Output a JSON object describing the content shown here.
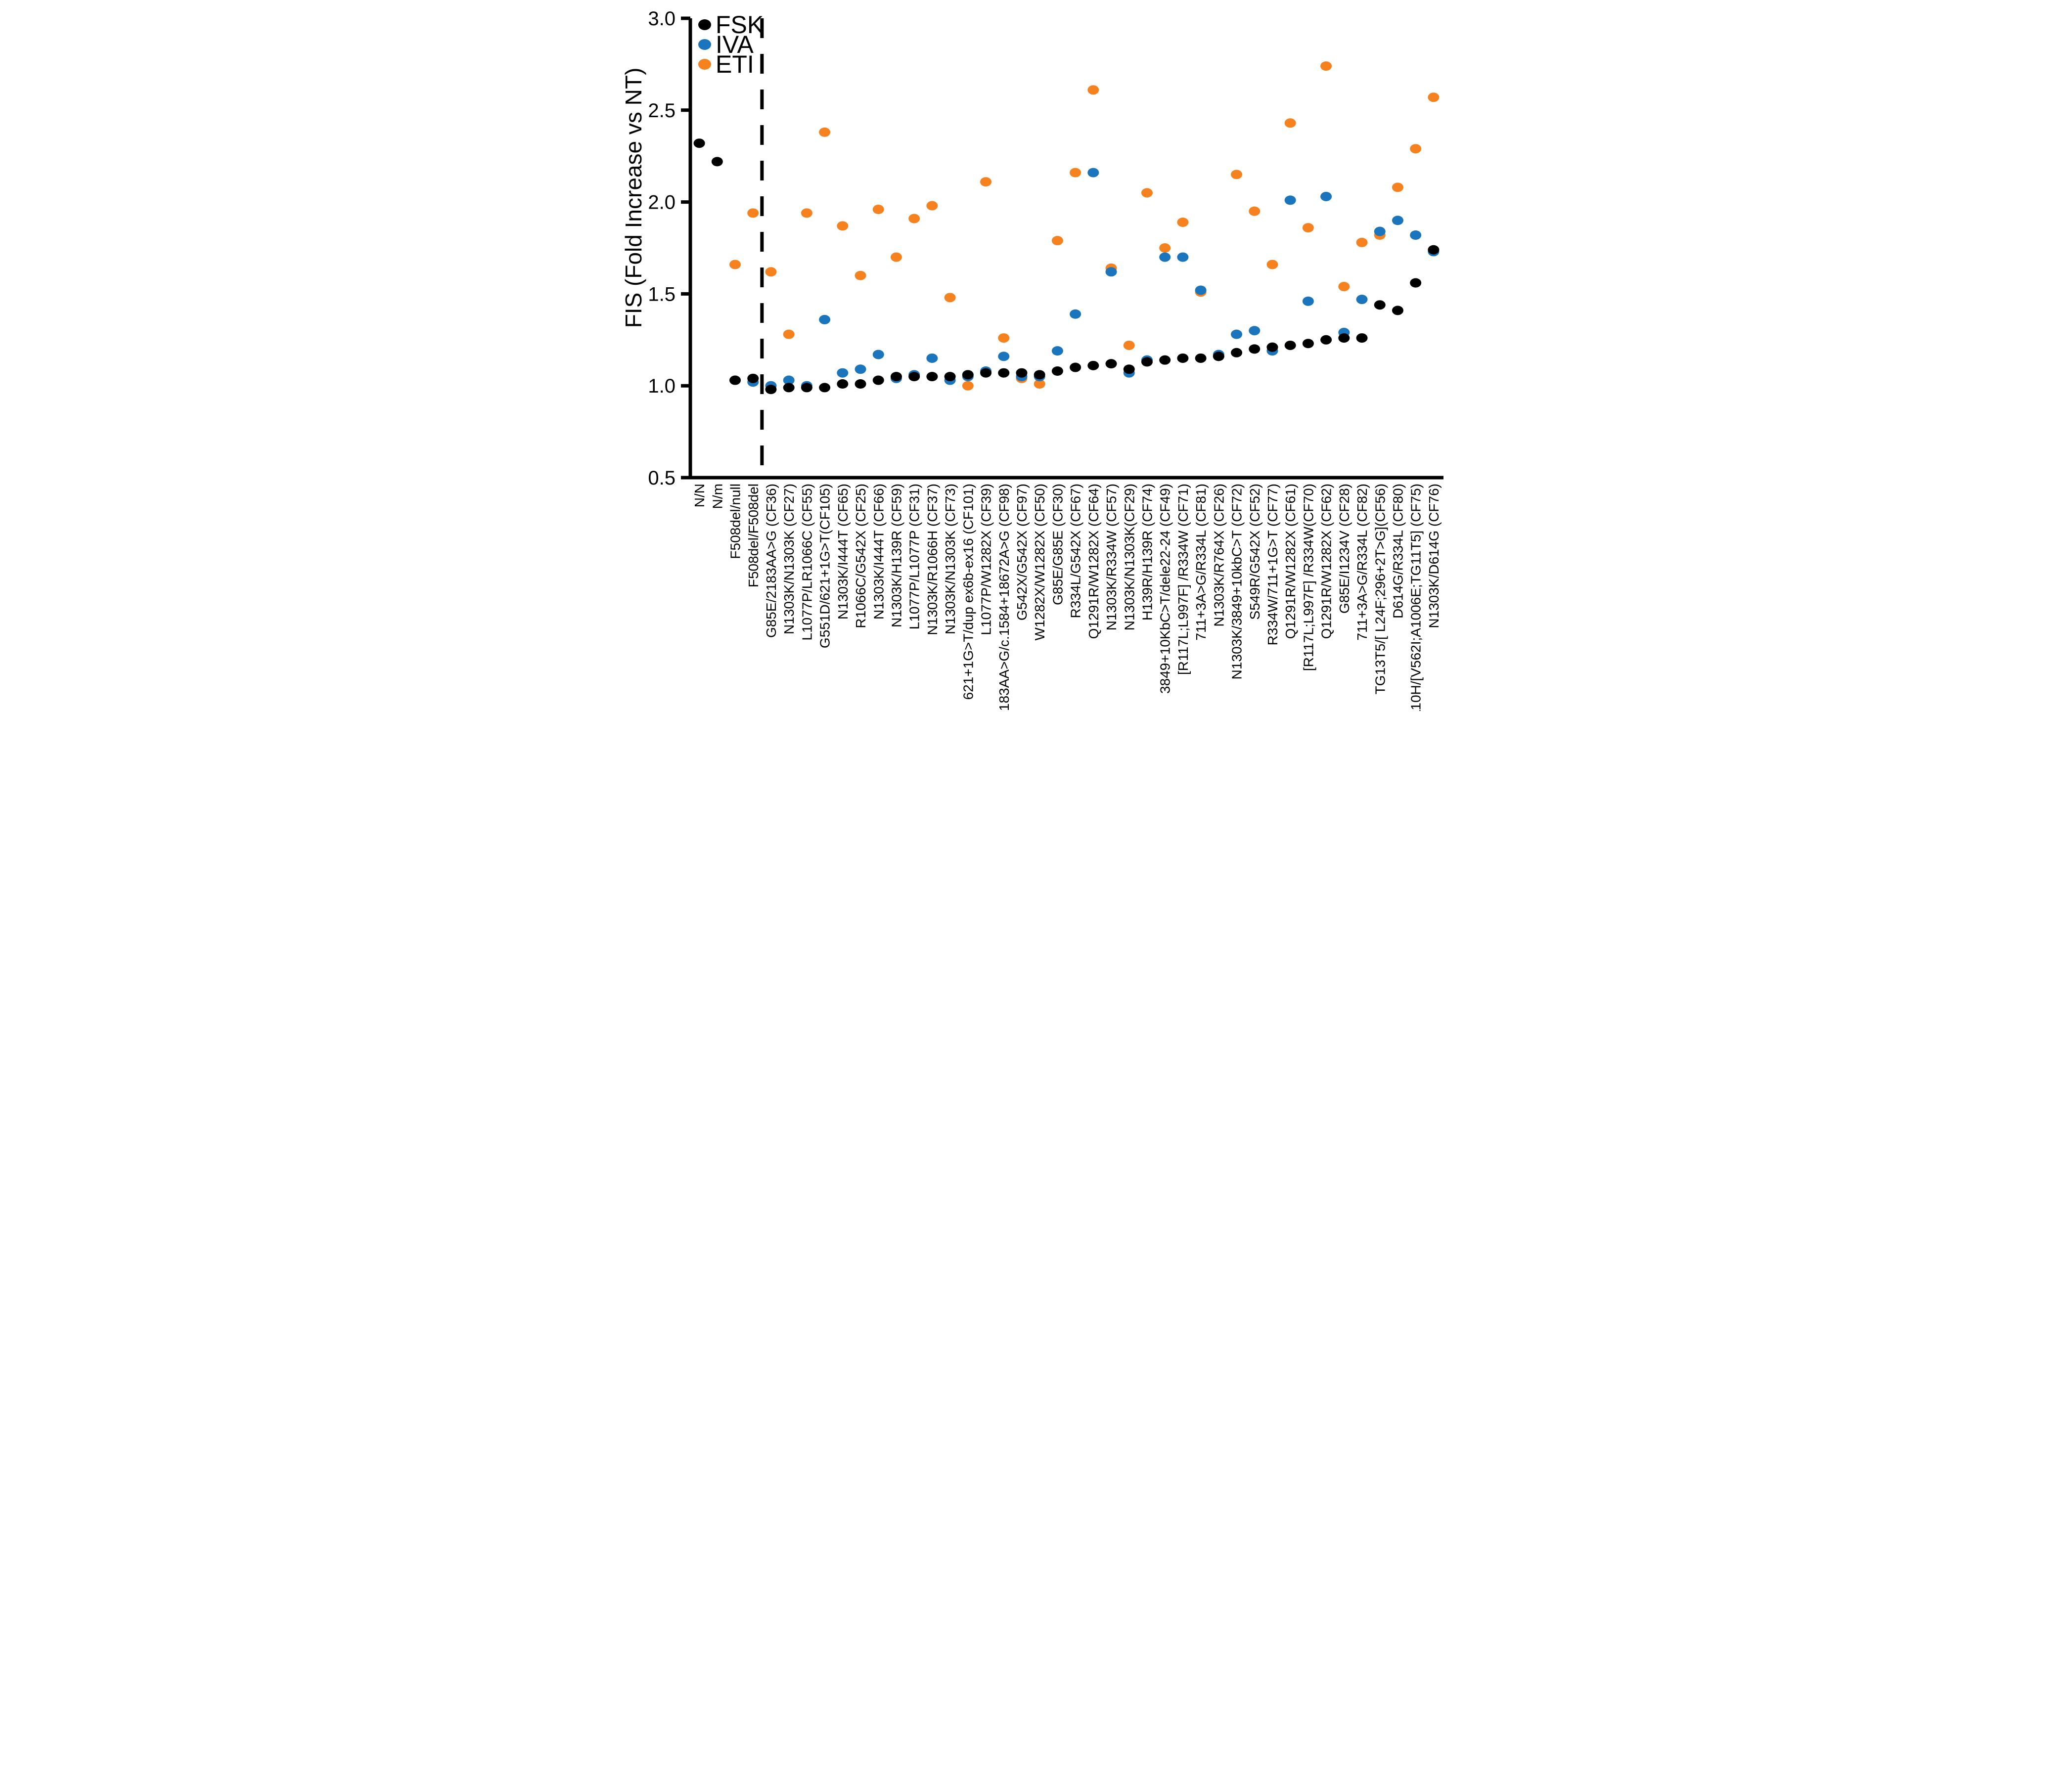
{
  "chart_data": {
    "type": "scatter",
    "title": "",
    "xlabel": "",
    "ylabel": "FIS (Fold Increase vs NT)",
    "ylim": [
      0.5,
      3.0
    ],
    "yticks": [
      0.5,
      1.0,
      1.5,
      2.0,
      2.5,
      3.0
    ],
    "ytick_labels": [
      "0.5",
      "1.0",
      "1.5",
      "2.0",
      "2.5",
      "3.0"
    ],
    "grid": false,
    "legend_position": "top-left",
    "separator": {
      "after_category_index": 3,
      "style": "dashed"
    },
    "categories": [
      "N/N",
      "N/m",
      "F508del/null",
      "F508del/F508del",
      "G85E/2183AA>G (CF36)",
      "N1303K/N1303K (CF27)",
      "L1077P/LR1066C (CF55)",
      "G551D/621+1G>T(CF105)",
      "N1303K/I444T (CF65)",
      "R1066C/G542X (CF25)",
      "N1303K/I444T (CF66)",
      "N1303K/H139R (CF59)",
      "L1077P/L1077P (CF31)",
      "N1303K/R1066H (CF37)",
      "N1303K/N1303K (CF73)",
      "621+1G>T/dup ex6b-ex16 (CF101)",
      "L1077P/W1282X (CF39)",
      "2183AA>G/c.1584+18672A>G (CF98)",
      "G542X/G542X (CF97)",
      "W1282X/W1282X (CF50)",
      "G85E/G85E (CF30)",
      "R334L/G542X (CF67)",
      "Q1291R/W1282X (CF64)",
      "N1303K/R334W (CF57)",
      "N1303K/N1303K(CF29)",
      "H139R/H139R (CF74)",
      "3849+10KbC>T/dele22-24 (CF49)",
      "[R117L;L997F] /R334W (CF71)",
      "711+3A>G/R334L (CF81)",
      "N1303K/R764X (CF26)",
      "N1303K/3849+10kbC>T (CF72)",
      "S549R/G542X (CF52)",
      "R334W/711+1G>T (CF77)",
      "Q1291R/W1282X (CF61)",
      "[R117L;L997F] /R334W(CF70)",
      "Q1291R/W1282X (CF62)",
      "G85E/I1234V (CF28)",
      "711+3A>G/R334L (CF82)",
      "TG13T5/[ L24F;296+2T>G](CF56)",
      "D614G/R334L (CF80)",
      "D110H/[V562I;A1006E;TG11T5] (CF75)",
      "N1303K/D614G (CF76)"
    ],
    "series": [
      {
        "name": "FSK",
        "color": "#000000",
        "values": [
          2.32,
          2.22,
          1.03,
          1.04,
          0.98,
          0.99,
          0.99,
          0.99,
          1.01,
          1.01,
          1.03,
          1.05,
          1.05,
          1.05,
          1.05,
          1.06,
          1.07,
          1.07,
          1.07,
          1.06,
          1.08,
          1.1,
          1.11,
          1.12,
          1.09,
          1.13,
          1.14,
          1.15,
          1.15,
          1.16,
          1.18,
          1.2,
          1.21,
          1.22,
          1.23,
          1.25,
          1.26,
          1.26,
          1.44,
          1.41,
          1.56,
          1.74
        ]
      },
      {
        "name": "IVA",
        "color": "#1B75BC",
        "values": [
          null,
          null,
          1.03,
          1.02,
          1.0,
          1.03,
          1.0,
          1.36,
          1.07,
          1.09,
          1.17,
          1.04,
          1.06,
          1.15,
          1.03,
          1.05,
          1.08,
          1.16,
          1.05,
          1.05,
          1.19,
          1.39,
          2.16,
          1.62,
          1.07,
          1.14,
          1.7,
          1.7,
          1.52,
          1.17,
          1.28,
          1.3,
          1.19,
          2.01,
          1.46,
          2.03,
          1.29,
          1.47,
          1.84,
          1.9,
          1.82,
          1.73
        ]
      },
      {
        "name": "ETI",
        "color": "#F5821F",
        "values": [
          null,
          null,
          1.66,
          1.94,
          1.62,
          1.28,
          1.94,
          2.38,
          1.87,
          1.6,
          1.96,
          1.7,
          1.91,
          1.98,
          1.48,
          1.0,
          2.11,
          1.26,
          1.04,
          1.01,
          1.79,
          2.16,
          2.61,
          1.64,
          1.22,
          2.05,
          1.75,
          1.89,
          1.51,
          1.16,
          2.15,
          1.95,
          1.66,
          2.43,
          1.86,
          2.74,
          1.54,
          1.78,
          1.82,
          2.08,
          2.29,
          2.57
        ]
      }
    ],
    "legend_entries": [
      "FSK",
      "IVA",
      "ETI"
    ],
    "draw_order_bottom_to_top": [
      "ETI",
      "IVA",
      "FSK"
    ]
  },
  "style": {
    "background": "#ffffff",
    "axis_color": "#000000",
    "fsk_color": "#000000",
    "iva_color": "#1B75BC",
    "eti_color": "#F5821F"
  }
}
